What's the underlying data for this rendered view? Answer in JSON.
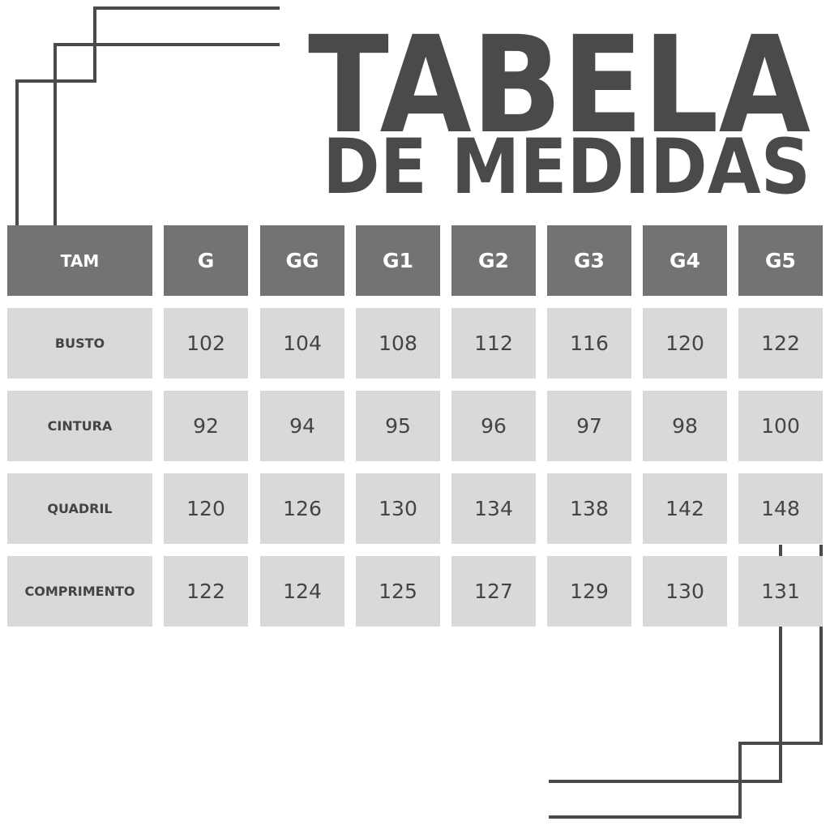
{
  "title": {
    "line1": "TABELA",
    "line2": "DE MEDIDAS"
  },
  "colors": {
    "header_bg": "#737373",
    "cell_bg": "#d9d9d9",
    "text_dark": "#4a4a4a",
    "line": "#4a4a4a"
  },
  "table": {
    "corner": "TAM",
    "sizes": [
      "G",
      "GG",
      "G1",
      "G2",
      "G3",
      "G4",
      "G5"
    ],
    "rows": [
      {
        "label": "BUSTO",
        "values": [
          "102",
          "104",
          "108",
          "112",
          "116",
          "120",
          "122"
        ]
      },
      {
        "label": "CINTURA",
        "values": [
          "92",
          "94",
          "95",
          "96",
          "97",
          "98",
          "100"
        ]
      },
      {
        "label": "QUADRIL",
        "values": [
          "120",
          "126",
          "130",
          "134",
          "138",
          "142",
          "148"
        ]
      },
      {
        "label": "COMPRIMENTO",
        "values": [
          "122",
          "124",
          "125",
          "127",
          "129",
          "130",
          "131"
        ]
      }
    ]
  }
}
